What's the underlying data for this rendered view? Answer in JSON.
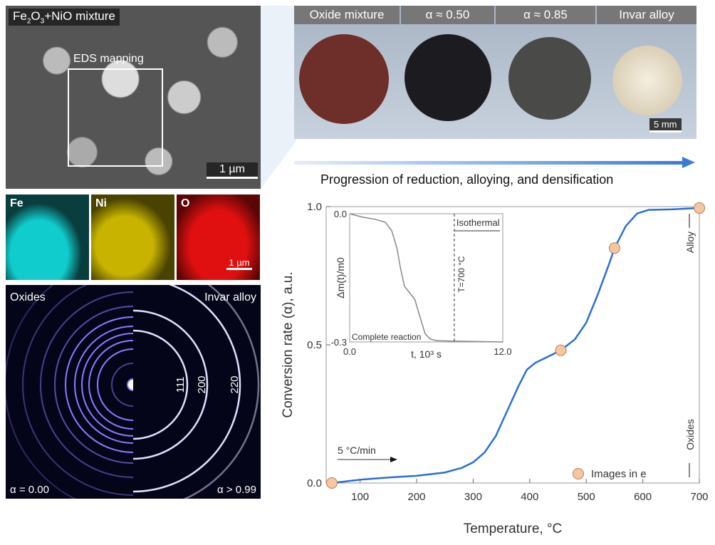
{
  "sem": {
    "title": "Fe2O3+NiO mixture",
    "title_parts": [
      "Fe",
      "2",
      "O",
      "3",
      "+NiO mixture"
    ],
    "box_label": "EDS mapping",
    "scale": "1 µm"
  },
  "eds": {
    "maps": [
      {
        "label": "Fe",
        "color": "#19b5b8"
      },
      {
        "label": "Ni",
        "color": "#c8b400"
      },
      {
        "label": "O",
        "color": "#d81010"
      }
    ],
    "scale": "1 µm"
  },
  "diffraction": {
    "left_label": "Oxides",
    "right_label": "Invar alloy",
    "left_alpha": "α = 0.00",
    "right_alpha": "α > 0.99",
    "rings": [
      "111",
      "200",
      "220"
    ]
  },
  "photos": {
    "headers": [
      "Oxide mixture",
      "α ≈ 0.50",
      "α ≈ 0.85",
      "Invar alloy"
    ],
    "scale": "5 mm",
    "disc_colors": [
      "#6e2e2a",
      "#1c1c20",
      "#4a4a48",
      "#e8dcc8"
    ]
  },
  "progression": {
    "text": "Progression of reduction, alloying, and densification",
    "color": "#3a7bd5"
  },
  "chart_data": [
    {
      "type": "line",
      "xlabel": "Temperature, °C",
      "ylabel": "Conversion rate (α), a.u.",
      "xlim": [
        40,
        700
      ],
      "ylim": [
        0,
        1
      ],
      "xticks": [
        "100",
        "200",
        "300",
        "400",
        "500",
        "600",
        "700"
      ],
      "yticks": [
        "0.0",
        "0.5",
        "1.0"
      ],
      "series": [
        {
          "color": "#2a6fd6",
          "x": [
            50,
            100,
            150,
            200,
            250,
            280,
            300,
            320,
            340,
            360,
            380,
            395,
            410,
            430,
            455,
            480,
            500,
            520,
            540,
            550,
            570,
            590,
            610,
            650,
            700
          ],
          "y": [
            0,
            0.012,
            0.02,
            0.026,
            0.038,
            0.055,
            0.075,
            0.11,
            0.17,
            0.26,
            0.35,
            0.41,
            0.435,
            0.455,
            0.48,
            0.52,
            0.58,
            0.68,
            0.79,
            0.85,
            0.93,
            0.975,
            0.988,
            0.99,
            0.995
          ]
        }
      ],
      "markers": {
        "name": "Images in e",
        "color": "#f6c6a0",
        "x": [
          50,
          455,
          550,
          700
        ],
        "y": [
          0,
          0.48,
          0.85,
          0.995
        ]
      },
      "annotations": {
        "rate": "5 °C/min",
        "alloy": "Alloy",
        "oxides": "Oxides"
      },
      "legend": "bottom-right"
    },
    {
      "type": "line",
      "inset": true,
      "xlabel": "t, 10³ s",
      "ylabel": "Δm(t)/m0",
      "xlim": [
        0,
        12
      ],
      "ylim": [
        -0.3,
        0
      ],
      "xticks": [
        "0.0",
        "12.0"
      ],
      "yticks": [
        "0.0",
        "-0.3"
      ],
      "series": [
        {
          "color": "#888888",
          "x": [
            0,
            1,
            2,
            2.8,
            3.3,
            3.7,
            4.0,
            4.3,
            4.7,
            5.1,
            5.5,
            5.9,
            6.3,
            6.7,
            7,
            8,
            10,
            12
          ],
          "y": [
            0,
            -0.008,
            -0.013,
            -0.02,
            -0.04,
            -0.08,
            -0.13,
            -0.17,
            -0.185,
            -0.2,
            -0.24,
            -0.28,
            -0.293,
            -0.296,
            -0.297,
            -0.298,
            -0.299,
            -0.3
          ]
        }
      ],
      "annotations": {
        "isothermal": "Isothermal",
        "temp": "T=700 °C",
        "complete": "Complete reaction"
      },
      "vline_t": 8.2
    }
  ]
}
